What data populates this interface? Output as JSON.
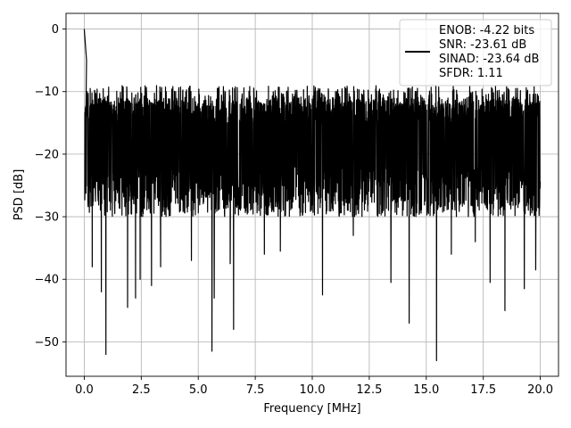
{
  "chart_data": {
    "type": "line",
    "xlabel": "Frequency [MHz]",
    "ylabel": "PSD [dB]",
    "xlim": [
      -0.8,
      20.8
    ],
    "ylim": [
      -55.5,
      2.5
    ],
    "x_ticks": [
      0.0,
      2.5,
      5.0,
      7.5,
      10.0,
      12.5,
      15.0,
      17.5,
      20.0
    ],
    "x_tick_labels": [
      "0.0",
      "2.5",
      "5.0",
      "7.5",
      "10.0",
      "12.5",
      "15.0",
      "17.5",
      "20.0"
    ],
    "y_ticks": [
      0,
      -10,
      -20,
      -30,
      -40,
      -50
    ],
    "y_tick_labels": [
      "0",
      "−10",
      "−20",
      "−30",
      "−40",
      "−50"
    ],
    "grid": true,
    "legend_position": "top-right",
    "legend": {
      "lines": [
        "ENOB: -4.22 bits",
        "SNR: -23.61 dB",
        "SINAD: -23.64 dB",
        "SFDR: 1.11"
      ]
    },
    "series": [
      {
        "color": "#000000",
        "band": {
          "typical_top": -11,
          "typical_bottom": -28,
          "floor_top": -9
        },
        "peaks": [
          {
            "x": 0.0,
            "y": 0.0
          },
          {
            "x": 0.05,
            "y": -2.5
          },
          {
            "x": 0.1,
            "y": -5.0
          }
        ],
        "dips": [
          {
            "x": 0.35,
            "y": -38.0
          },
          {
            "x": 0.75,
            "y": -42.0
          },
          {
            "x": 0.95,
            "y": -52.0
          },
          {
            "x": 1.9,
            "y": -44.5
          },
          {
            "x": 2.25,
            "y": -43.0
          },
          {
            "x": 2.45,
            "y": -40.0
          },
          {
            "x": 2.95,
            "y": -41.0
          },
          {
            "x": 3.35,
            "y": -38.0
          },
          {
            "x": 4.7,
            "y": -37.0
          },
          {
            "x": 5.6,
            "y": -51.5
          },
          {
            "x": 5.7,
            "y": -43.0
          },
          {
            "x": 6.4,
            "y": -37.5
          },
          {
            "x": 6.55,
            "y": -48.0
          },
          {
            "x": 7.9,
            "y": -36.0
          },
          {
            "x": 8.6,
            "y": -35.5
          },
          {
            "x": 10.45,
            "y": -42.5
          },
          {
            "x": 11.8,
            "y": -33.0
          },
          {
            "x": 13.45,
            "y": -40.5
          },
          {
            "x": 14.25,
            "y": -47.0
          },
          {
            "x": 15.45,
            "y": -53.0
          },
          {
            "x": 16.1,
            "y": -36.0
          },
          {
            "x": 17.15,
            "y": -34.0
          },
          {
            "x": 17.8,
            "y": -40.5
          },
          {
            "x": 18.45,
            "y": -45.0
          },
          {
            "x": 19.3,
            "y": -41.5
          },
          {
            "x": 19.8,
            "y": -38.5
          }
        ]
      }
    ]
  }
}
